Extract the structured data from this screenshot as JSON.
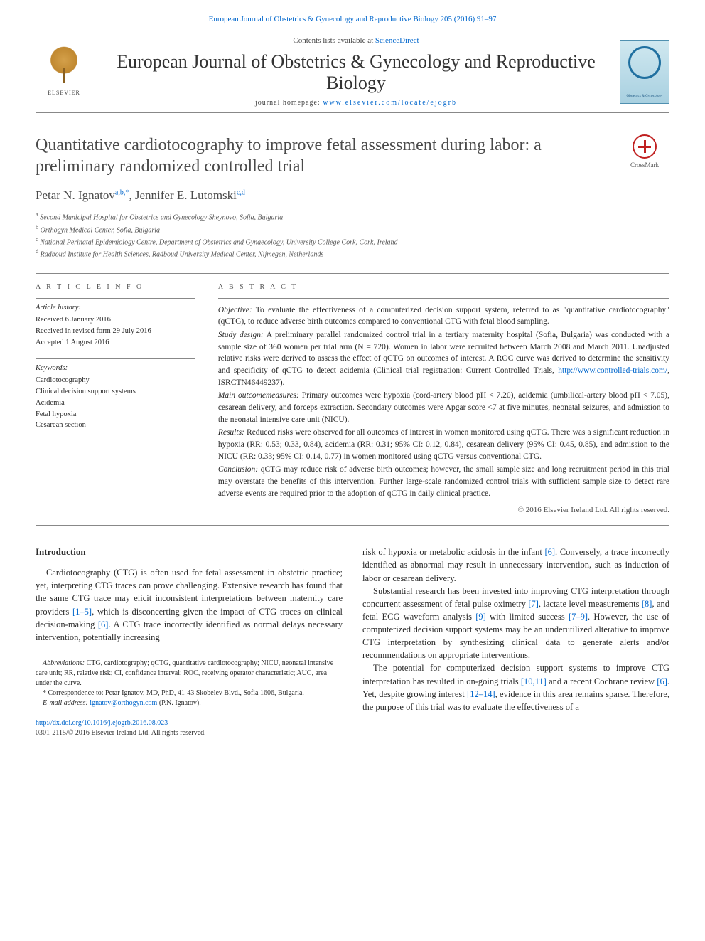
{
  "header": {
    "running_head": "European Journal of Obstetrics & Gynecology and Reproductive Biology 205 (2016) 91–97",
    "contents_prefix": "Contents lists available at ",
    "contents_link": "ScienceDirect",
    "journal_name": "European Journal of Obstetrics & Gynecology and Reproductive Biology",
    "homepage_prefix": "journal homepage: ",
    "homepage_url": "www.elsevier.com/locate/ejogrb",
    "elsevier_label": "ELSEVIER",
    "cover_caption": "Obstetrics & Gynecology",
    "crossmark_label": "CrossMark"
  },
  "article": {
    "title": "Quantitative cardiotocography to improve fetal assessment during labor: a preliminary randomized controlled trial",
    "authors_html": "Petar N. Ignatov",
    "author1_name": "Petar N. Ignatov",
    "author1_aff": "a,b,",
    "author1_corr": "*",
    "sep": ", ",
    "author2_name": "Jennifer E. Lutomski",
    "author2_aff": "c,d",
    "affiliations": {
      "a": "Second Municipal Hospital for Obstetrics and Gynecology Sheynovo, Sofia, Bulgaria",
      "b": "Orthogyn Medical Center, Sofia, Bulgaria",
      "c": "National Perinatal Epidemiology Centre, Department of Obstetrics and Gynaecology, University College Cork, Cork, Ireland",
      "d": "Radboud Institute for Health Sciences, Radboud University Medical Center, Nijmegen, Netherlands"
    }
  },
  "info": {
    "heading": "A R T I C L E   I N F O",
    "history_label": "Article history:",
    "history": {
      "received": "Received 6 January 2016",
      "revised": "Received in revised form 29 July 2016",
      "accepted": "Accepted 1 August 2016"
    },
    "keywords_label": "Keywords:",
    "keywords": [
      "Cardiotocography",
      "Clinical decision support systems",
      "Acidemia",
      "Fetal hypoxia",
      "Cesarean section"
    ]
  },
  "abstract": {
    "heading": "A B S T R A C T",
    "objective_label": "Objective:",
    "objective": " To evaluate the effectiveness of a computerized decision support system, referred to as \"quantitative cardiotocography\" (qCTG), to reduce adverse birth outcomes compared to conventional CTG with fetal blood sampling.",
    "design_label": "Study design:",
    "design_pre": " A preliminary parallel randomized control trial in a tertiary maternity hospital (Sofia, Bulgaria) was conducted with a sample size of 360 women per trial arm (N = 720). Women in labor were recruited between March 2008 and March 2011. Unadjusted relative risks were derived to assess the effect of qCTG on outcomes of interest. A ROC curve was derived to determine the sensitivity and specificity of qCTG to detect acidemia (Clinical trial registration: Current Controlled Trials, ",
    "trial_url": "http://www.controlled-trials.com/",
    "design_post": ", ISRCTN46449237).",
    "outcomes_label": "Main outcomemeasures:",
    "outcomes": " Primary outcomes were hypoxia (cord-artery blood pH < 7.20), acidemia (umbilical-artery blood pH < 7.05), cesarean delivery, and forceps extraction. Secondary outcomes were Apgar score <7 at five minutes, neonatal seizures, and admission to the neonatal intensive care unit (NICU).",
    "results_label": "Results:",
    "results": " Reduced risks were observed for all outcomes of interest in women monitored using qCTG. There was a significant reduction in hypoxia (RR: 0.53; 0.33, 0.84), acidemia (RR: 0.31; 95% CI: 0.12, 0.84), cesarean delivery (95% CI: 0.45, 0.85), and admission to the NICU (RR: 0.33; 95% CI: 0.14, 0.77) in women monitored using qCTG versus conventional CTG.",
    "conclusion_label": "Conclusion:",
    "conclusion": " qCTG may reduce risk of adverse birth outcomes; however, the small sample size and long recruitment period in this trial may overstate the benefits of this intervention. Further large-scale randomized control trials with sufficient sample size to detect rare adverse events are required prior to the adoption of qCTG in daily clinical practice.",
    "copyright": "© 2016 Elsevier Ireland Ltd. All rights reserved."
  },
  "body": {
    "intro_heading": "Introduction",
    "p1_pre": "Cardiotocography (CTG) is often used for fetal assessment in obstetric practice; yet, interpreting CTG traces can prove challenging. Extensive research has found that the same CTG trace may elicit inconsistent interpretations between maternity care providers ",
    "ref_1_5": "[1–5]",
    "p1_mid": ", which is disconcerting given the impact of CTG traces on clinical decision-making ",
    "ref_6a": "[6]",
    "p1_post": ". A CTG trace incorrectly identified as normal delays necessary intervention, potentially increasing",
    "p2_pre": "risk of hypoxia or metabolic acidosis in the infant ",
    "ref_6b": "[6]",
    "p2_post": ". Conversely, a trace incorrectly identified as abnormal may result in unnecessary intervention, such as induction of labor or cesarean delivery.",
    "p3_pre": "Substantial research has been invested into improving CTG interpretation through concurrent assessment of fetal pulse oximetry ",
    "ref_7": "[7]",
    "p3_a": ", lactate level measurements ",
    "ref_8": "[8]",
    "p3_b": ", and fetal ECG waveform analysis ",
    "ref_9": "[9]",
    "p3_c": " with limited success ",
    "ref_7_9": "[7–9]",
    "p3_post": ". However, the use of computerized decision support systems may be an underutilized alterative to improve CTG interpretation by synthesizing clinical data to generate alerts and/or recommendations on appropriate interventions.",
    "p4_pre": "The potential for computerized decision support systems to improve CTG interpretation has resulted in on-going trials ",
    "ref_10_11": "[10,11]",
    "p4_a": " and a recent Cochrane review ",
    "ref_6c": "[6]",
    "p4_b": ". Yet, despite growing interest ",
    "ref_12_14": "[12–14]",
    "p4_post": ", evidence in this area remains sparse. Therefore, the purpose of this trial was to evaluate the effectiveness of a"
  },
  "footnotes": {
    "abbrev_label": "Abbreviations:",
    "abbrev": " CTG, cardiotography; qCTG, quantitative cardiotocography; NICU, neonatal intensive care unit; RR, relative risk; CI, confidence interval; ROC, receiving operator characteristic; AUC, area under the curve.",
    "corr_marker": "*",
    "corr_text": " Correspondence to: Petar Ignatov, MD, PhD, 41-43 Skobelev Blvd., Sofia 1606, Bulgaria.",
    "email_label": "E-mail address:",
    "email": "ignatov@orthogyn.com",
    "email_suffix": " (P.N. Ignatov)."
  },
  "doi": {
    "url": "http://dx.doi.org/10.1016/j.ejogrb.2016.08.023",
    "issn_line": "0301-2115/© 2016 Elsevier Ireland Ltd. All rights reserved."
  },
  "colors": {
    "link": "#0066cc",
    "text": "#2b2b2b",
    "rule": "#888888",
    "background": "#ffffff"
  },
  "typography": {
    "body_pt": 12.5,
    "title_pt": 24,
    "journal_pt": 26,
    "abstract_pt": 11.5,
    "info_pt": 10.5,
    "footnote_pt": 10,
    "font_family": "Georgia, Times New Roman, serif"
  }
}
